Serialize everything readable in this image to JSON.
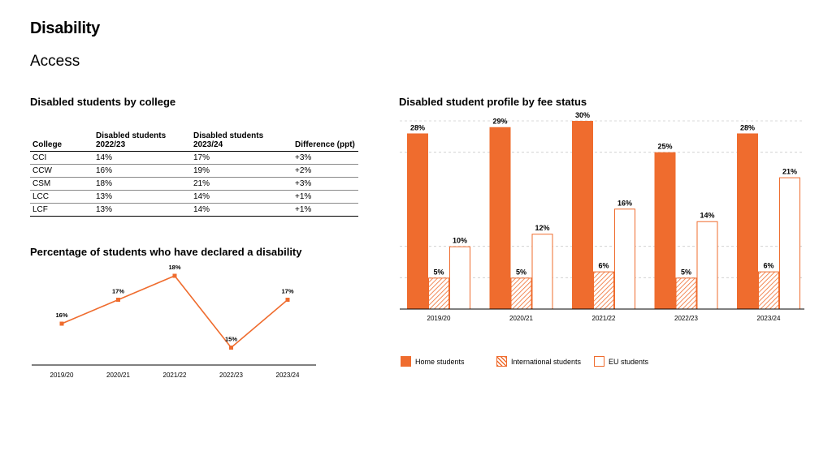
{
  "page": {
    "title": "Disability",
    "subtitle": "Access"
  },
  "college_table": {
    "title": "Disabled students by college",
    "headers": [
      "College",
      "Disabled students\n2022/23",
      "Disabled students\n2023/24",
      "Difference (ppt)"
    ],
    "rows": [
      [
        "CCI",
        "14%",
        "17%",
        "+3%"
      ],
      [
        "CCW",
        "16%",
        "19%",
        "+2%"
      ],
      [
        "CSM",
        "18%",
        "21%",
        "+3%"
      ],
      [
        "LCC",
        "13%",
        "14%",
        "+1%"
      ],
      [
        "LCF",
        "13%",
        "14%",
        "+1%"
      ]
    ]
  },
  "colors": {
    "accent": "#ef6c2e",
    "grid": "#cccccc",
    "axis": "#000000"
  },
  "chart_data": [
    {
      "type": "line",
      "title": "Percentage of students who have declared a disability",
      "categories": [
        "2019/20",
        "2020/21",
        "2021/22",
        "2022/23",
        "2023/24"
      ],
      "values": [
        16,
        17,
        18,
        15,
        17
      ],
      "data_labels": [
        "16%",
        "17%",
        "18%",
        "15%",
        "17%"
      ],
      "grid": false
    },
    {
      "type": "bar",
      "title": "Disabled student profile by fee status",
      "categories": [
        "2019/20",
        "2020/21",
        "2021/22",
        "2022/23",
        "2023/24"
      ],
      "series": [
        {
          "name": "Home students",
          "values": [
            28,
            29,
            30,
            25,
            28
          ],
          "labels": [
            "28%",
            "29%",
            "30%",
            "25%",
            "28%"
          ],
          "style": "solid"
        },
        {
          "name": "International students",
          "values": [
            5,
            5,
            6,
            5,
            6
          ],
          "labels": [
            "5%",
            "5%",
            "6%",
            "5%",
            "6%"
          ],
          "style": "hatched"
        },
        {
          "name": "EU students",
          "values": [
            10,
            12,
            16,
            14,
            21
          ],
          "labels": [
            "10%",
            "12%",
            "16%",
            "14%",
            "21%"
          ],
          "style": "outline"
        }
      ],
      "ylim": [
        0,
        30
      ],
      "grid": true,
      "legend_position": "bottom"
    }
  ]
}
